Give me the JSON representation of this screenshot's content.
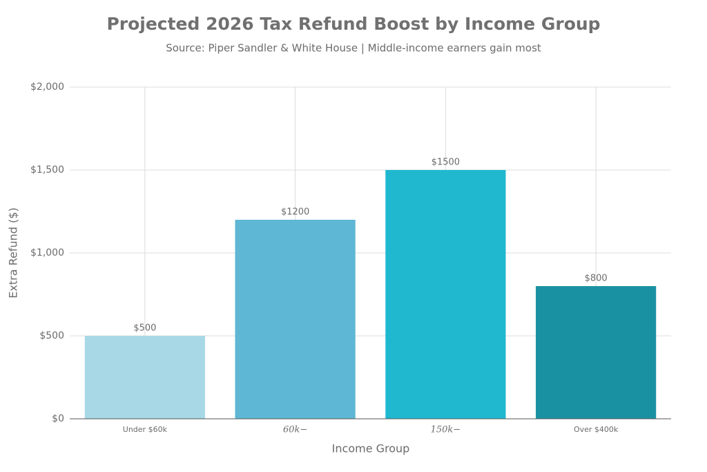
{
  "chart_data": {
    "type": "bar",
    "title": "Projected 2026 Tax Refund Boost by Income Group",
    "subtitle": "Source: Piper Sandler & White House | Middle-income earners gain most",
    "x_label": "Income Group",
    "y_label": "Extra Refund ($)",
    "categories": [
      "Under $60k",
      "60k−",
      "150k−",
      "Over $400k"
    ],
    "values": [
      500,
      1200,
      1500,
      800
    ],
    "value_labels": [
      "$500",
      "$1200",
      "$1500",
      "$800"
    ],
    "colors": [
      "#a8d8e6",
      "#5eb7d4",
      "#20b8cf",
      "#1a91a3"
    ],
    "ylim": [
      0,
      2000
    ],
    "yticks": [
      {
        "value": 0,
        "label": "$0"
      },
      {
        "value": 500,
        "label": "$500"
      },
      {
        "value": 1000,
        "label": "$1,000"
      },
      {
        "value": 1500,
        "label": "$1,500"
      },
      {
        "value": 2000,
        "label": "$2,000"
      }
    ],
    "grid": true
  }
}
